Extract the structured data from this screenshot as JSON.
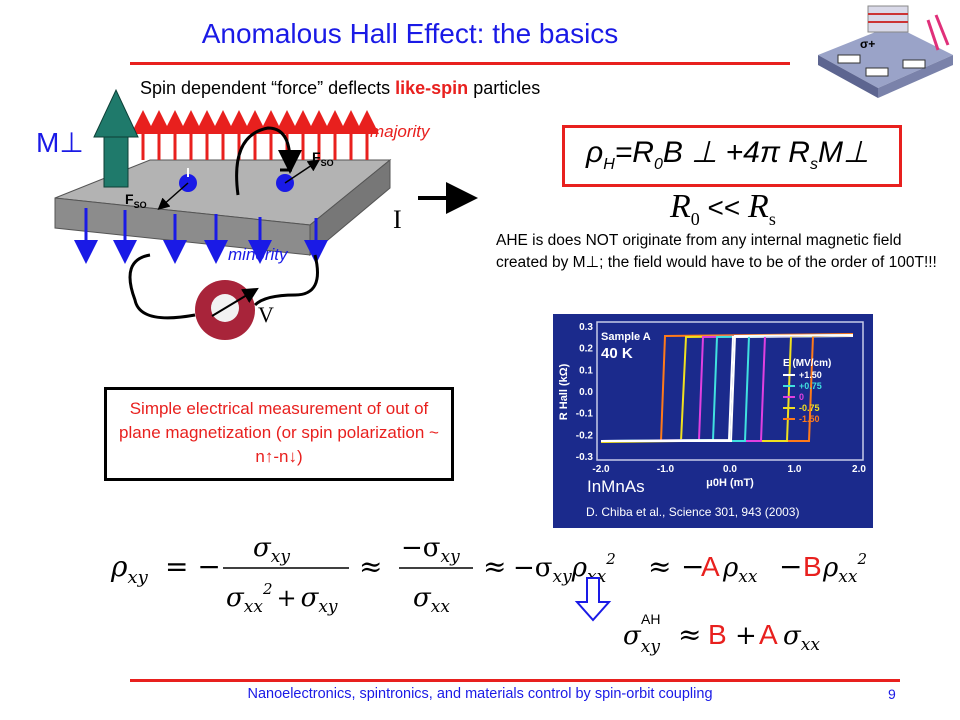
{
  "slide": {
    "title": "Anomalous Hall Effect: the basics",
    "subtitle_prefix": "Spin dependent “force” deflects ",
    "subtitle_highlight": "like-spin",
    "subtitle_suffix": " particles",
    "page_number": "9",
    "footer": "Nanoelectronics, spintronics, and materials control by spin-orbit coupling"
  },
  "diagram": {
    "m_perp": "M⊥",
    "majority": "majority",
    "minority": "minority",
    "fso_sub": "SO",
    "fso_main": "F",
    "current": "I",
    "voltage": "V"
  },
  "formula": {
    "rho": "ρ",
    "h_sub": "H",
    "eq_r": "=R",
    "zero_sub": "0",
    "b_perp": "B ⊥ +4π R",
    "s_sub": "s",
    "m_perp": "M⊥",
    "r0": "R",
    "r0_sub": "0",
    "ll": " << ",
    "rs": "R",
    "rs_sub": "s"
  },
  "ahe_note": "AHE is does NOT originate from any internal magnetic field created by M⊥; the field would have to be of the order of 100T!!!",
  "info_box": "Simple electrical measurement of out of plane magnetization (or spin polarization ~ n↑-n↓)",
  "plot": {
    "sample": "Sample A",
    "temperature": "40 K",
    "legend_title": "E (MV/cm)",
    "legend": [
      {
        "label": "+1.50",
        "color": "#ffffff"
      },
      {
        "label": "+0.75",
        "color": "#40e0e0"
      },
      {
        "label": "0",
        "color": "#e040e0"
      },
      {
        "label": "-0.75",
        "color": "#f0e020"
      },
      {
        "label": "-1.50",
        "color": "#ff7a1a"
      }
    ],
    "ylabel": "R Hall (kΩ)",
    "xlabel": "μ0H (mT)",
    "yticks": [
      "0.3",
      "0.2",
      "0.1",
      "0.0",
      "-0.1",
      "-0.2",
      "-0.3"
    ],
    "xticks": [
      "-2.0",
      "-1.0",
      "0.0",
      "1.0",
      "2.0"
    ],
    "material": "InMnAs",
    "citation": "D. Chiba et al., Science 301, 943 (2003)",
    "top_partial": "(In,Mn)As"
  },
  "equation": {
    "rho_xy": "ρ",
    "rho_xy_sub": "xy",
    "eq1": "= −",
    "sigma_xy": "σ",
    "xy": "xy",
    "sigma_xx": "σ",
    "xx": "xx",
    "two": "2",
    "plus": "+",
    "approx": "≈",
    "minus_sigma": "−σ",
    "minus": "−",
    "A": "A",
    "B": "B",
    "sigma_ah": "σ",
    "ah_sup": "AH",
    "colors": {
      "coef": "#e8201e",
      "ink": "#000000"
    }
  },
  "colors": {
    "title": "#1a1ae6",
    "accent": "#e8201e",
    "arrow_up": "#e8201e",
    "arrow_down": "#1a1ae6",
    "ball": "#1a1ae6",
    "meter": "#a8243a",
    "m_arrow": "#1f7a6b"
  }
}
